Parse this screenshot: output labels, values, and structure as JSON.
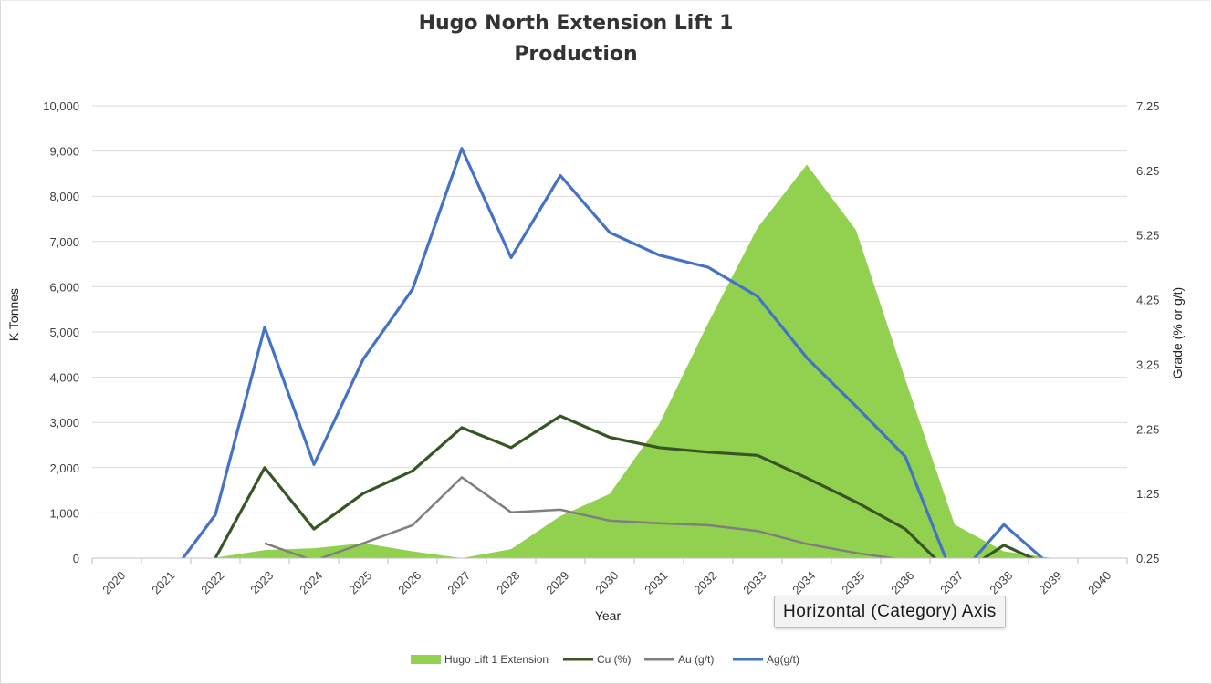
{
  "chart_data": {
    "type": "area",
    "title_lines": [
      "Hugo North Extension Lift 1",
      "Production"
    ],
    "xlabel": "Year",
    "ylabel": "K Tonnes",
    "y2label": "Grade (% or g/t)",
    "categories": [
      "2020",
      "2021",
      "2022",
      "2023",
      "2024",
      "2025",
      "2026",
      "2027",
      "2028",
      "2029",
      "2030",
      "2031",
      "2032",
      "2033",
      "2034",
      "2035",
      "2036",
      "2037",
      "2038",
      "2039",
      "2040"
    ],
    "ylim": [
      0,
      10000
    ],
    "yticks": [
      0,
      1000,
      2000,
      3000,
      4000,
      5000,
      6000,
      7000,
      8000,
      9000,
      10000
    ],
    "ytick_labels": [
      "0",
      "1,000",
      "2,000",
      "3,000",
      "4,000",
      "5,000",
      "6,000",
      "7,000",
      "8,000",
      "9,000",
      "10,000"
    ],
    "y2lim": [
      0.25,
      7.25
    ],
    "y2ticks": [
      0.25,
      1.25,
      2.25,
      3.25,
      4.25,
      5.25,
      6.25,
      7.25
    ],
    "y2tick_labels": [
      "0.25",
      "1.25",
      "2.25",
      "3.25",
      "4.25",
      "5.25",
      "6.25",
      "7.25"
    ],
    "grid": true,
    "legend_position": "bottom",
    "series": [
      {
        "name": "Hugo Lift 1 Extension",
        "type": "area",
        "axis": "left",
        "color": "#92d050",
        "values": [
          0,
          0,
          10,
          180,
          220,
          330,
          150,
          0,
          200,
          930,
          1420,
          2950,
          5200,
          7300,
          8700,
          7250,
          3950,
          740,
          150,
          0,
          null
        ]
      },
      {
        "name": "Cu (%)",
        "type": "line",
        "axis": "right",
        "color": "#375623",
        "values": [
          null,
          null,
          0.25,
          1.65,
          0.7,
          1.25,
          1.6,
          2.27,
          1.96,
          2.45,
          2.12,
          1.96,
          1.89,
          1.84,
          1.49,
          1.12,
          0.7,
          -0.05,
          0.45,
          0.1,
          null
        ]
      },
      {
        "name": "Au (g/t)",
        "type": "line",
        "axis": "right",
        "color": "#7f7f7f",
        "values": [
          null,
          null,
          null,
          0.48,
          0.21,
          0.48,
          0.76,
          1.5,
          0.96,
          1.0,
          0.83,
          0.79,
          0.76,
          0.67,
          0.47,
          0.33,
          0.22,
          null,
          null,
          null,
          null
        ]
      },
      {
        "name": "Ag(g/t)",
        "type": "line",
        "axis": "right",
        "color": "#4472c4",
        "values": [
          null,
          -0.1,
          0.92,
          3.82,
          1.7,
          3.33,
          4.41,
          6.59,
          4.9,
          6.17,
          5.29,
          4.94,
          4.75,
          4.3,
          3.35,
          2.6,
          1.82,
          -0.1,
          0.77,
          0.1,
          null
        ]
      }
    ]
  },
  "tooltip": {
    "text": "Horizontal (Category) Axis"
  }
}
